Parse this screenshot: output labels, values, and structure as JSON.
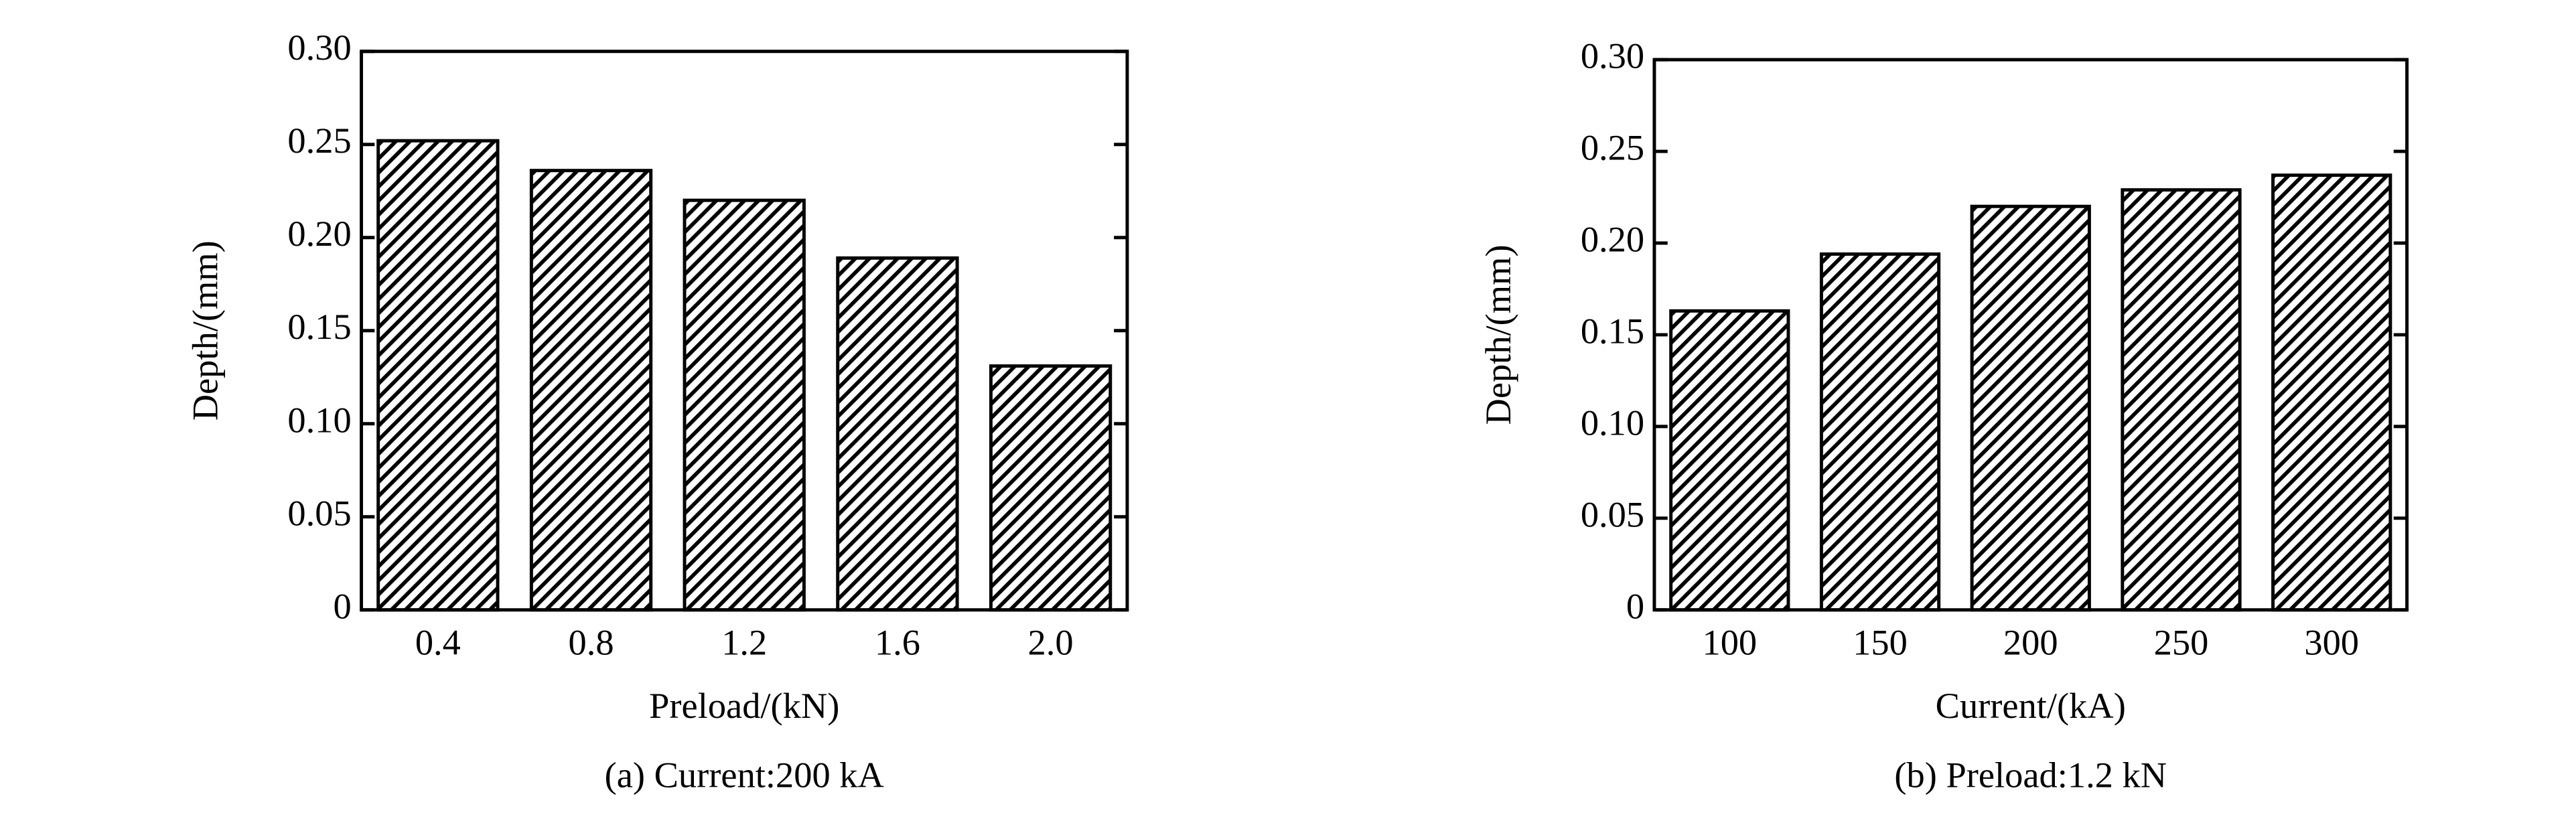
{
  "chart_data": [
    {
      "type": "bar",
      "categories": [
        "0.4",
        "0.8",
        "1.2",
        "1.6",
        "2.0"
      ],
      "values": [
        0.252,
        0.236,
        0.22,
        0.189,
        0.131
      ],
      "ylim": [
        0,
        0.3
      ],
      "yticks": [
        0,
        0.05,
        {
          "value": 0.1,
          "label": "0.10"
        },
        0.15,
        {
          "value": 0.2,
          "label": "0.20"
        },
        0.25,
        {
          "value": 0.3,
          "label": "0.30"
        }
      ],
      "xlabel": "Preload/(kN)",
      "ylabel": "Depth/(mm)",
      "caption": "(a) Current:200 kA",
      "color": "#000000"
    },
    {
      "type": "bar",
      "categories": [
        "100",
        "150",
        "200",
        "250",
        "300"
      ],
      "values": [
        0.163,
        0.194,
        0.22,
        0.229,
        0.237
      ],
      "ylim": [
        0,
        0.3
      ],
      "yticks": [
        0,
        0.05,
        {
          "value": 0.1,
          "label": "0.10"
        },
        0.15,
        {
          "value": 0.2,
          "label": "0.20"
        },
        0.25,
        {
          "value": 0.3,
          "label": "0.30"
        }
      ],
      "xlabel": "Current/(kA)",
      "ylabel": "Depth/(mm)",
      "caption": "(b) Preload:1.2 kN",
      "color": "#000000"
    }
  ]
}
